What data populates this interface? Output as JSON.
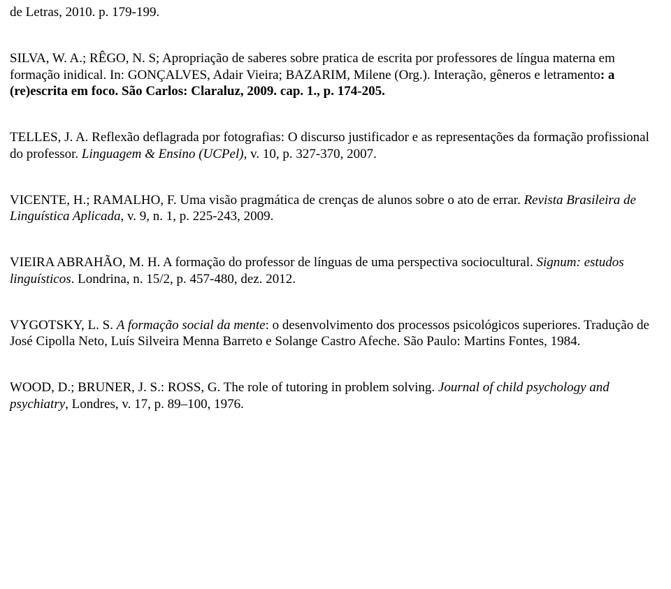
{
  "refs": {
    "r0": {
      "text": "de Letras, 2010. p. 179-199."
    },
    "r1": {
      "a": "SILVA, W. A.; RÊGO, N. S; Apropriação de saberes sobre pratica de escrita por professores de língua materna em formação inidical. In: GONÇALVES, Adair Vieira; BAZARIM, Milene (Org.). Interação, gêneros e letramento",
      "b": ": a (re)escrita em foco. São Carlos: Claraluz, 2009. cap. 1., p. 174-205."
    },
    "r2": {
      "a": "TELLES, J. A. Reflexão deflagrada por fotografias: O discurso justificador e as representações da formação profissional do professor. ",
      "b": "Linguagem & Ensino (UCPel)",
      "c": ", v. 10, p. 327-370, 2007."
    },
    "r3": {
      "a": "VICENTE, H.; RAMALHO, F. Uma visão pragmática de crenças de alunos sobre o ato de errar. ",
      "b": "Revista Brasileira de Linguística Aplicada",
      "c": ", v. 9, n. 1, p. 225-243, 2009."
    },
    "r4": {
      "a": "VIEIRA ABRAHÃO, M. H. A formação do professor de línguas de uma perspectiva sociocultural. ",
      "b": "Signum: estudos linguísticos",
      "c": ". Londrina, n. 15/2, p. 457-480, dez. 2012."
    },
    "r5": {
      "a": "VYGOTSKY, L. S. ",
      "b": "A formação social da mente",
      "c": ": o desenvolvimento dos processos psicológicos superiores. Tradução de José Cipolla Neto, Luís Silveira Menna Barreto e Solange Castro Afeche. São Paulo: Martins Fontes, 1984."
    },
    "r6": {
      "a": "WOOD, D.; BRUNER, J. S.: ROSS, G. The role of tutoring in problem solving. ",
      "b": "Journal of child psychology and psychiatry",
      "c": ", Londres, v. 17, p. 89–100, 1976."
    }
  }
}
